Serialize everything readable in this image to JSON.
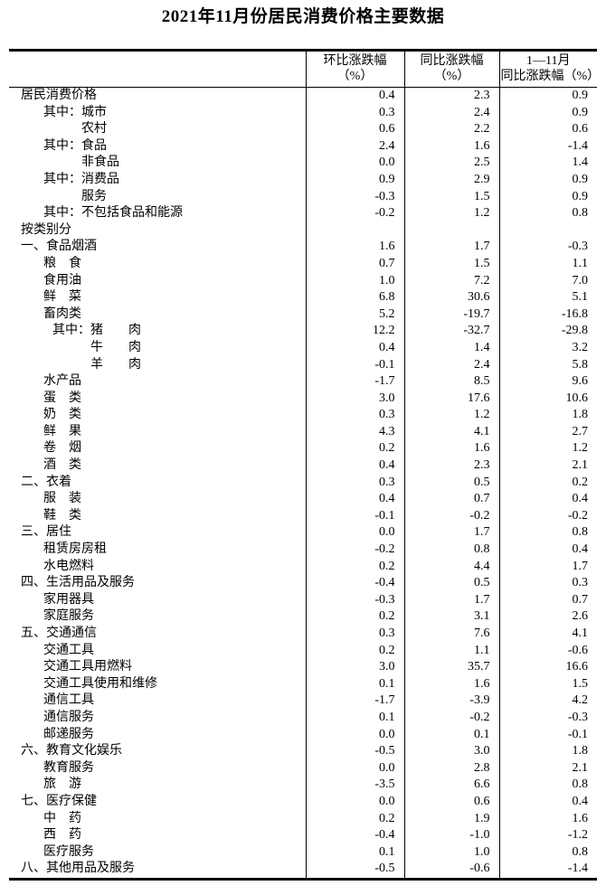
{
  "title": "2021年11月份居民消费价格主要数据",
  "colors": {
    "text": "#000000",
    "line": "#000000",
    "background": "#ffffff"
  },
  "table": {
    "columns": [
      {
        "line1": "环比涨跌幅",
        "line2": "（%）"
      },
      {
        "line1": "同比涨跌幅",
        "line2": "（%）"
      },
      {
        "line1": "1—11月",
        "line2": "同比涨跌幅（%）"
      }
    ],
    "rows": [
      {
        "label": "居民消费价格",
        "indent": 0,
        "values": [
          "0.4",
          "2.3",
          "0.9"
        ]
      },
      {
        "label": "其中：城市",
        "indent": 1,
        "values": [
          "0.3",
          "2.4",
          "0.9"
        ]
      },
      {
        "label": "农村",
        "indent": 2,
        "values": [
          "0.6",
          "2.2",
          "0.6"
        ]
      },
      {
        "label": "其中：食品",
        "indent": 1,
        "values": [
          "2.4",
          "1.6",
          "-1.4"
        ]
      },
      {
        "label": "非食品",
        "indent": 2,
        "values": [
          "0.0",
          "2.5",
          "1.4"
        ]
      },
      {
        "label": "其中：消费品",
        "indent": 1,
        "values": [
          "0.9",
          "2.9",
          "0.9"
        ]
      },
      {
        "label": "服务",
        "indent": 2,
        "values": [
          "-0.3",
          "1.5",
          "0.9"
        ]
      },
      {
        "label": "其中：不包括食品和能源",
        "indent": 1,
        "values": [
          "-0.2",
          "1.2",
          "0.8"
        ]
      },
      {
        "label": "按类别分",
        "indent": 0,
        "values": [
          "",
          "",
          ""
        ]
      },
      {
        "label": "一、食品烟酒",
        "indent": 0,
        "values": [
          "1.6",
          "1.7",
          "-0.3"
        ]
      },
      {
        "label": "粮　食",
        "indent": 3,
        "values": [
          "0.7",
          "1.5",
          "1.1"
        ]
      },
      {
        "label": "食用油",
        "indent": 3,
        "values": [
          "1.0",
          "7.2",
          "7.0"
        ]
      },
      {
        "label": "鲜　菜",
        "indent": 3,
        "values": [
          "6.8",
          "30.6",
          "5.1"
        ]
      },
      {
        "label": "畜肉类",
        "indent": 3,
        "values": [
          "5.2",
          "-19.7",
          "-16.8"
        ]
      },
      {
        "label": "其中：猪　　肉",
        "indent": 4,
        "values": [
          "12.2",
          "-32.7",
          "-29.8"
        ]
      },
      {
        "label": "牛　　肉",
        "indent": 5,
        "values": [
          "0.4",
          "1.4",
          "3.2"
        ]
      },
      {
        "label": "羊　　肉",
        "indent": 5,
        "values": [
          "-0.1",
          "2.4",
          "5.8"
        ]
      },
      {
        "label": "水产品",
        "indent": 3,
        "values": [
          "-1.7",
          "8.5",
          "9.6"
        ]
      },
      {
        "label": "蛋　类",
        "indent": 3,
        "values": [
          "3.0",
          "17.6",
          "10.6"
        ]
      },
      {
        "label": "奶　类",
        "indent": 3,
        "values": [
          "0.3",
          "1.2",
          "1.8"
        ]
      },
      {
        "label": "鲜　果",
        "indent": 3,
        "values": [
          "4.3",
          "4.1",
          "2.7"
        ]
      },
      {
        "label": "卷　烟",
        "indent": 3,
        "values": [
          "0.2",
          "1.6",
          "1.2"
        ]
      },
      {
        "label": "酒　类",
        "indent": 3,
        "values": [
          "0.4",
          "2.3",
          "2.1"
        ]
      },
      {
        "label": "二、衣着",
        "indent": 0,
        "values": [
          "0.3",
          "0.5",
          "0.2"
        ]
      },
      {
        "label": "服　装",
        "indent": 3,
        "values": [
          "0.4",
          "0.7",
          "0.4"
        ]
      },
      {
        "label": "鞋　类",
        "indent": 3,
        "values": [
          "-0.1",
          "-0.2",
          "-0.2"
        ]
      },
      {
        "label": "三、居住",
        "indent": 0,
        "values": [
          "0.0",
          "1.7",
          "0.8"
        ]
      },
      {
        "label": "租赁房房租",
        "indent": 3,
        "values": [
          "-0.2",
          "0.8",
          "0.4"
        ]
      },
      {
        "label": "水电燃料",
        "indent": 3,
        "values": [
          "0.2",
          "4.4",
          "1.7"
        ]
      },
      {
        "label": "四、生活用品及服务",
        "indent": 0,
        "values": [
          "-0.4",
          "0.5",
          "0.3"
        ]
      },
      {
        "label": "家用器具",
        "indent": 3,
        "values": [
          "-0.3",
          "1.7",
          "0.7"
        ]
      },
      {
        "label": "家庭服务",
        "indent": 3,
        "values": [
          "0.2",
          "3.1",
          "2.6"
        ]
      },
      {
        "label": "五、交通通信",
        "indent": 0,
        "values": [
          "0.3",
          "7.6",
          "4.1"
        ]
      },
      {
        "label": "交通工具",
        "indent": 3,
        "values": [
          "0.2",
          "1.1",
          "-0.6"
        ]
      },
      {
        "label": "交通工具用燃料",
        "indent": 3,
        "values": [
          "3.0",
          "35.7",
          "16.6"
        ]
      },
      {
        "label": "交通工具使用和维修",
        "indent": 3,
        "values": [
          "0.1",
          "1.6",
          "1.5"
        ]
      },
      {
        "label": "通信工具",
        "indent": 3,
        "values": [
          "-1.7",
          "-3.9",
          "4.2"
        ]
      },
      {
        "label": "通信服务",
        "indent": 3,
        "values": [
          "0.1",
          "-0.2",
          "-0.3"
        ]
      },
      {
        "label": "邮递服务",
        "indent": 3,
        "values": [
          "0.0",
          "0.1",
          "-0.1"
        ]
      },
      {
        "label": "六、教育文化娱乐",
        "indent": 0,
        "values": [
          "-0.5",
          "3.0",
          "1.8"
        ]
      },
      {
        "label": "教育服务",
        "indent": 3,
        "values": [
          "0.0",
          "2.8",
          "2.1"
        ]
      },
      {
        "label": "旅　游",
        "indent": 3,
        "values": [
          "-3.5",
          "6.6",
          "0.8"
        ]
      },
      {
        "label": "七、医疗保健",
        "indent": 0,
        "values": [
          "0.0",
          "0.6",
          "0.4"
        ]
      },
      {
        "label": "中　药",
        "indent": 3,
        "values": [
          "0.2",
          "1.9",
          "1.6"
        ]
      },
      {
        "label": "西　药",
        "indent": 3,
        "values": [
          "-0.4",
          "-1.0",
          "-1.2"
        ]
      },
      {
        "label": "医疗服务",
        "indent": 3,
        "values": [
          "0.1",
          "1.0",
          "0.8"
        ]
      },
      {
        "label": "八、其他用品及服务",
        "indent": 0,
        "values": [
          "-0.5",
          "-0.6",
          "-1.4"
        ]
      }
    ]
  }
}
